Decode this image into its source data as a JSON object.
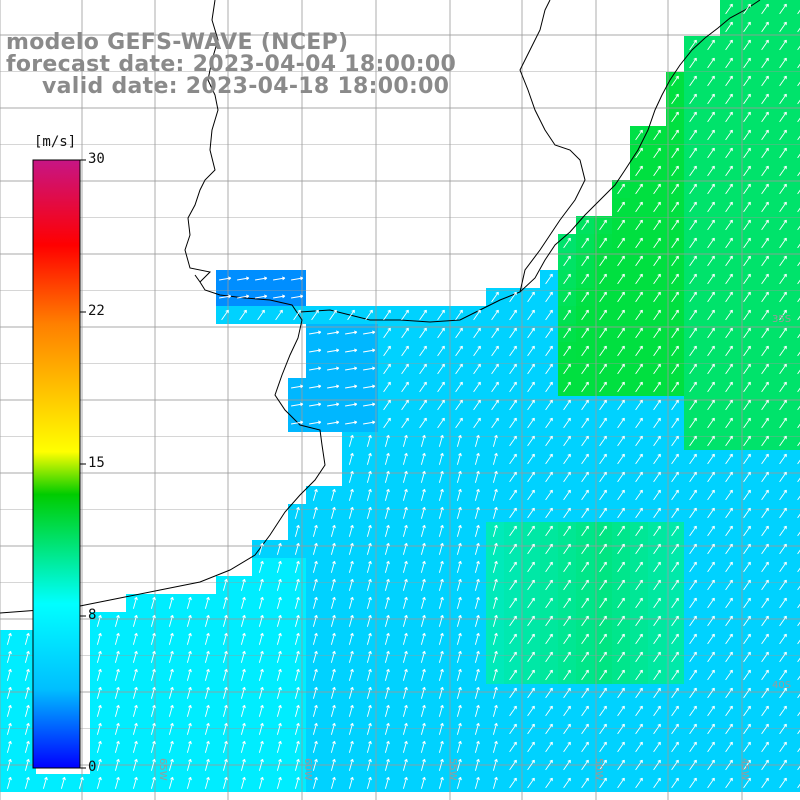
{
  "title": {
    "line1": "modelo GEFS-WAVE (NCEP)",
    "line2": "forecast date: 2023-04-04 18:00:00",
    "line3": "valid date: 2023-04-18 18:00:00"
  },
  "colorbar": {
    "unit": "[m/s]",
    "ticks": [
      "30",
      "22",
      "15",
      "8",
      "0"
    ],
    "range": [
      0,
      30
    ],
    "colors": [
      "#0000ff",
      "#00bfff",
      "#00ffff",
      "#00cc00",
      "#ffff00",
      "#ff8000",
      "#ff0000",
      "#c71585"
    ]
  },
  "map_labels": {
    "lat": [
      "35S",
      "40S"
    ],
    "lon": [
      "65W",
      "60W",
      "55W",
      "50W",
      "45W"
    ]
  }
}
